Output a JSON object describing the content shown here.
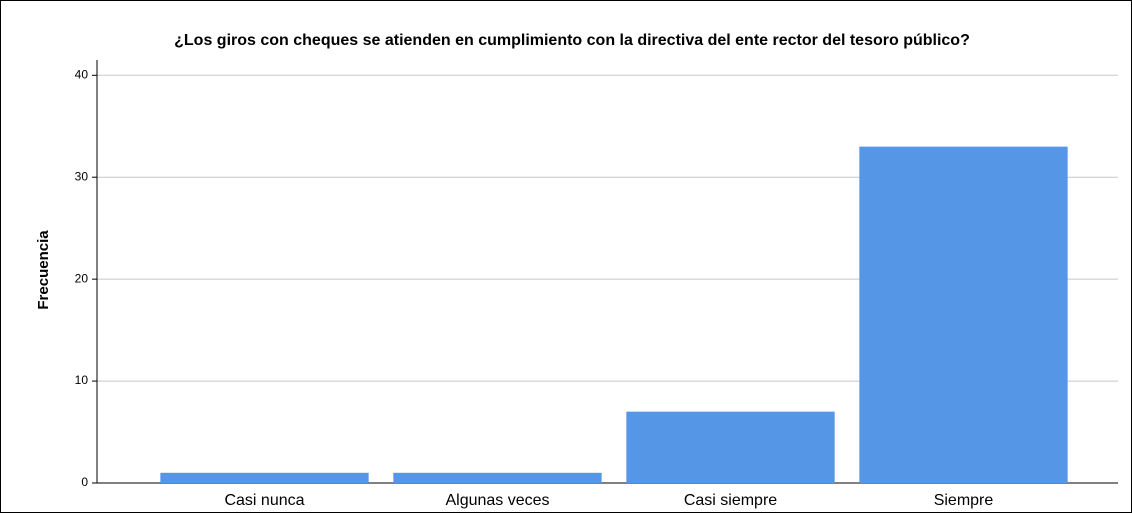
{
  "chart_data": {
    "type": "bar",
    "title": "¿Los giros con cheques se atienden en cumplimiento con la directiva del ente rector del tesoro público?",
    "y_label": "Frecuencia",
    "categories": [
      "Casi nunca",
      "Algunas veces",
      "Casi siempre",
      "Siempre"
    ],
    "values": [
      1,
      1,
      7,
      33
    ],
    "color": "#5596e6",
    "ylim": [
      0,
      41.5
    ],
    "yticks": [
      0,
      10,
      20,
      30,
      40
    ],
    "grid": true
  }
}
